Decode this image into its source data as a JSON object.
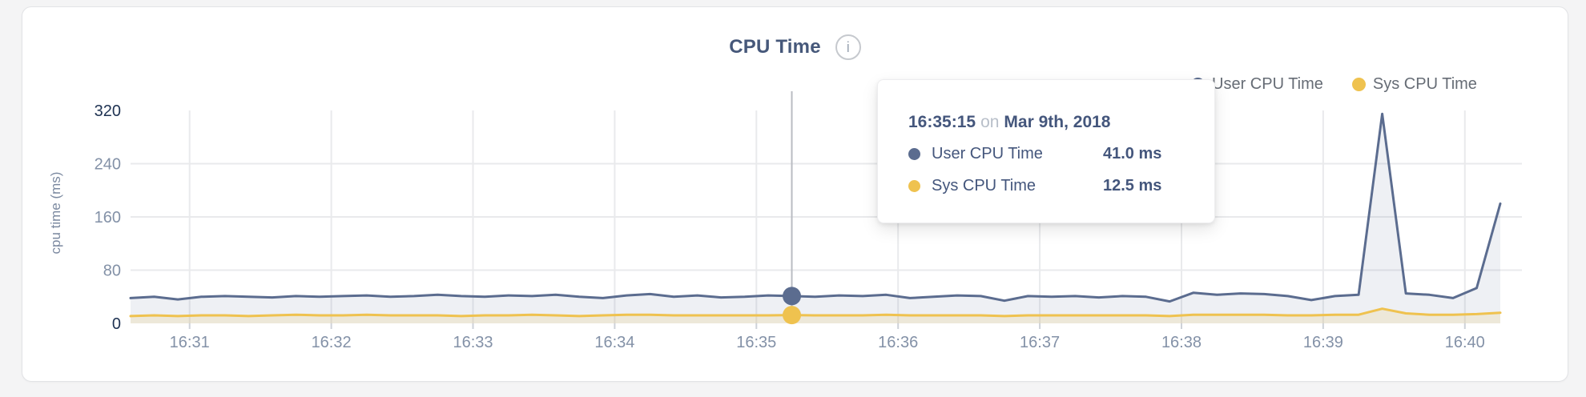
{
  "header": {
    "info_glyph": "i"
  },
  "icons": {
    "info": "info-icon",
    "legend_user": "circle-dot",
    "legend_sys": "circle-dot"
  },
  "tooltip": {
    "time": "16:35:15",
    "connector": "on",
    "date": "Mar 9th, 2018",
    "rows": [
      {
        "label": "User CPU Time",
        "value": "41.0 ms",
        "color": "#5b6c8f"
      },
      {
        "label": "Sys CPU Time",
        "value": "12.5 ms",
        "color": "#efc24f"
      }
    ]
  },
  "chart_data": {
    "type": "line",
    "title": "CPU Time",
    "xlabel": "",
    "ylabel": "cpu time (ms)",
    "ylim": [
      0,
      320
    ],
    "y_ticks": [
      0,
      80,
      160,
      240,
      320
    ],
    "x_ticks": [
      "16:31",
      "16:32",
      "16:33",
      "16:34",
      "16:35",
      "16:36",
      "16:37",
      "16:38",
      "16:39",
      "16:40"
    ],
    "grid": true,
    "legend_position": "top-right",
    "colors": {
      "gridline": "#e9eaec",
      "tick_mark": "#ced2d8",
      "axis_label_light": "#8391a7",
      "axis_label_dark": "#1e3252",
      "cursor": "#b9bcc2"
    },
    "x": [
      "16:30:35",
      "16:30:45",
      "16:30:55",
      "16:31:05",
      "16:31:15",
      "16:31:25",
      "16:31:35",
      "16:31:45",
      "16:31:55",
      "16:32:05",
      "16:32:15",
      "16:32:25",
      "16:32:35",
      "16:32:45",
      "16:32:55",
      "16:33:05",
      "16:33:15",
      "16:33:25",
      "16:33:35",
      "16:33:45",
      "16:33:55",
      "16:34:05",
      "16:34:15",
      "16:34:25",
      "16:34:35",
      "16:34:45",
      "16:34:55",
      "16:35:05",
      "16:35:15",
      "16:35:25",
      "16:35:35",
      "16:35:45",
      "16:35:55",
      "16:36:05",
      "16:36:15",
      "16:36:25",
      "16:36:35",
      "16:36:45",
      "16:36:55",
      "16:37:05",
      "16:37:15",
      "16:37:25",
      "16:37:35",
      "16:37:45",
      "16:37:55",
      "16:38:05",
      "16:38:15",
      "16:38:25",
      "16:38:35",
      "16:38:45",
      "16:38:55",
      "16:39:05",
      "16:39:15",
      "16:39:25",
      "16:39:35",
      "16:39:45",
      "16:39:55",
      "16:40:05",
      "16:40:15"
    ],
    "series": [
      {
        "name": "User CPU Time",
        "color": "#5b6c8f",
        "fill": "rgba(91,108,143,0.10)",
        "values": [
          38,
          40,
          36,
          40,
          41,
          40,
          39,
          41,
          40,
          41,
          42,
          40,
          41,
          43,
          41,
          40,
          42,
          41,
          43,
          40,
          38,
          42,
          44,
          40,
          42,
          39,
          40,
          42,
          41,
          40,
          42,
          41,
          43,
          38,
          40,
          42,
          41,
          34,
          41,
          40,
          41,
          39,
          41,
          40,
          33,
          46,
          43,
          45,
          44,
          41,
          35,
          41,
          43,
          315,
          45,
          43,
          38,
          53,
          180
        ]
      },
      {
        "name": "Sys CPU Time",
        "color": "#efc24f",
        "fill": "rgba(239,194,79,0.16)",
        "values": [
          11,
          12,
          11,
          12,
          12,
          11,
          12,
          13,
          12,
          12,
          13,
          12,
          12,
          12,
          11,
          12,
          12,
          13,
          12,
          11,
          12,
          13,
          13,
          12,
          12,
          12,
          12,
          12,
          12.5,
          12,
          12,
          12,
          13,
          12,
          12,
          12,
          12,
          11,
          12,
          12,
          12,
          12,
          12,
          12,
          11,
          13,
          13,
          13,
          13,
          12,
          12,
          13,
          13,
          22,
          15,
          13,
          13,
          14,
          16
        ]
      }
    ],
    "hover": {
      "x": "16:35:15",
      "values": [
        41.0,
        12.5
      ]
    }
  }
}
